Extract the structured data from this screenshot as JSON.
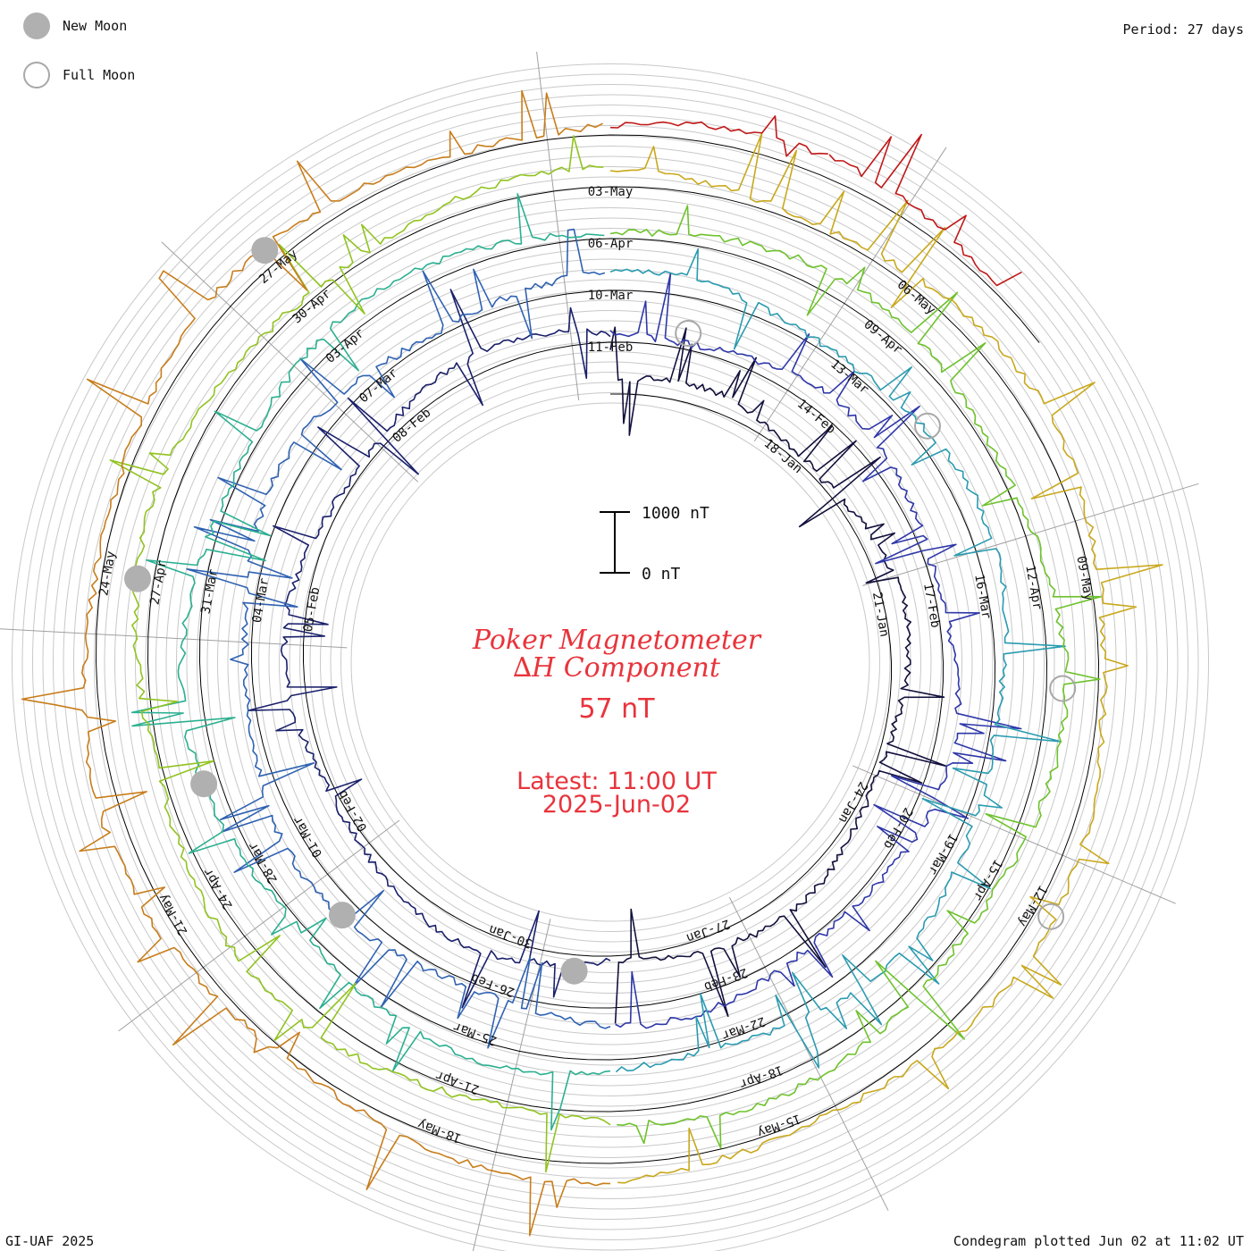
{
  "legend": {
    "new_moon_label": "New Moon",
    "full_moon_label": "Full Moon"
  },
  "period_label": "Period: 27 days",
  "title_line1": "Poker Magnetometer",
  "title_line2": "∆H Component",
  "current_value": "57 nT",
  "latest_line1": "Latest: 11:00 UT",
  "latest_line2": "2025-Jun-02",
  "footer_left": "GI-UAF 2025",
  "footer_right": "Condegram plotted Jun 02 at 11:02 UT",
  "colors": {
    "title": "#e8343c",
    "grid": "#c8c8c8",
    "spokes": "#a0a0a0",
    "baseline": "#000000",
    "moon_new": "#b0b0b0",
    "moon_full": "#a8a8a8"
  },
  "chart_data": {
    "type": "line",
    "layout": "spiral",
    "period_days": 27,
    "scale_bar": {
      "top_label": "1000 nT",
      "bottom_label": "0 nT",
      "value_nT": 1000
    },
    "series": [
      {
        "rotation": 1,
        "start": "2025-01-15",
        "color": "#12103c",
        "date_labels": [
          "18-Jan",
          "21-Jan",
          "24-Jan",
          "27-Jan",
          "30-Jan",
          "02-Feb",
          "05-Feb",
          "08-Feb",
          "11-Feb"
        ]
      },
      {
        "rotation": 2,
        "start": "2025-02-11",
        "color": "#2e37a8",
        "date_labels": [
          "14-Feb",
          "17-Feb",
          "20-Feb",
          "23-Feb",
          "26-Feb",
          "01-Mar",
          "04-Mar",
          "07-Mar",
          "10-Mar"
        ]
      },
      {
        "rotation": 3,
        "start": "2025-03-10",
        "color": "#2a9bb0",
        "date_labels": [
          "13-Mar",
          "16-Mar",
          "19-Mar",
          "22-Mar",
          "25-Mar",
          "28-Mar",
          "31-Mar",
          "03-Apr",
          "06-Apr"
        ]
      },
      {
        "rotation": 4,
        "start": "2025-04-06",
        "color": "#6ec22c",
        "date_labels": [
          "09-Apr",
          "12-Apr",
          "15-Apr",
          "18-Apr",
          "21-Apr",
          "24-Apr",
          "27-Apr",
          "30-Apr",
          "03-May"
        ]
      },
      {
        "rotation": 5,
        "start": "2025-05-03",
        "color": "#c9a81c",
        "date_labels": [
          "06-May",
          "09-May",
          "12-May",
          "15-May",
          "18-May",
          "21-May",
          "24-May",
          "27-May"
        ]
      },
      {
        "rotation": 6,
        "start": "2025-05-30",
        "color": "#c01818",
        "date_labels": []
      }
    ],
    "series_colors_lower": [
      "#1f2a8a",
      "#2f7fb8",
      "#2cbc7a",
      "#a8c418",
      "#c8601a",
      "#c01818"
    ],
    "moon_phases": [
      {
        "type": "new",
        "date": "2025-01-29"
      },
      {
        "type": "full",
        "date": "2025-02-12"
      },
      {
        "type": "new",
        "date": "2025-02-28"
      },
      {
        "type": "full",
        "date": "2025-03-14"
      },
      {
        "type": "new",
        "date": "2025-03-29"
      },
      {
        "type": "full",
        "date": "2025-04-13"
      },
      {
        "type": "new",
        "date": "2025-04-27"
      },
      {
        "type": "full",
        "date": "2025-05-12"
      },
      {
        "type": "new",
        "date": "2025-05-27"
      }
    ]
  }
}
